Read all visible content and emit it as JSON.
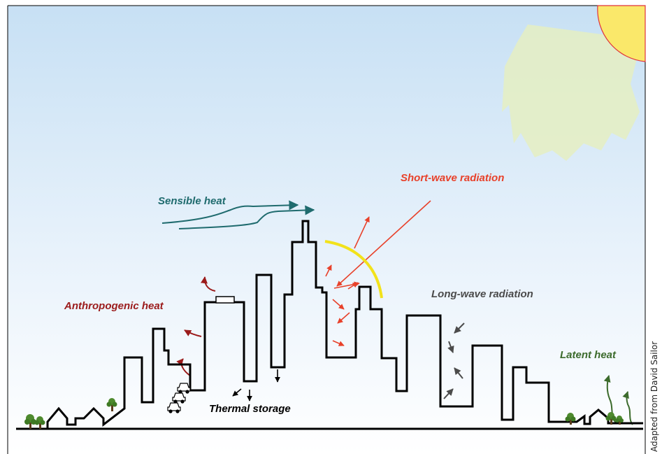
{
  "labels": {
    "short_wave": "Short-wave radiation",
    "sensible": "Sensible heat",
    "anthropogenic": "Anthropogenic heat",
    "long_wave": "Long-wave radiation",
    "latent": "Latent heat",
    "thermal": "Thermal storage"
  },
  "credit": "Adapted from David Sailor",
  "colors": {
    "sky_top": "#c7e0f4",
    "sky_bottom": "#ffffff",
    "sun": "#fae86a",
    "sun_rim": "#e0323c",
    "sun_rays": "#e5eec2",
    "short_wave": "#e8412a",
    "sensible": "#1f6b6e",
    "anthropogenic": "#9b1b1b",
    "long_wave": "#4b4b4b",
    "latent": "#3c6b2c",
    "reflect_arc": "#f2e21b",
    "skyline": "#000000"
  },
  "icons": [
    "sun-icon",
    "car-icon",
    "tree-icon"
  ]
}
